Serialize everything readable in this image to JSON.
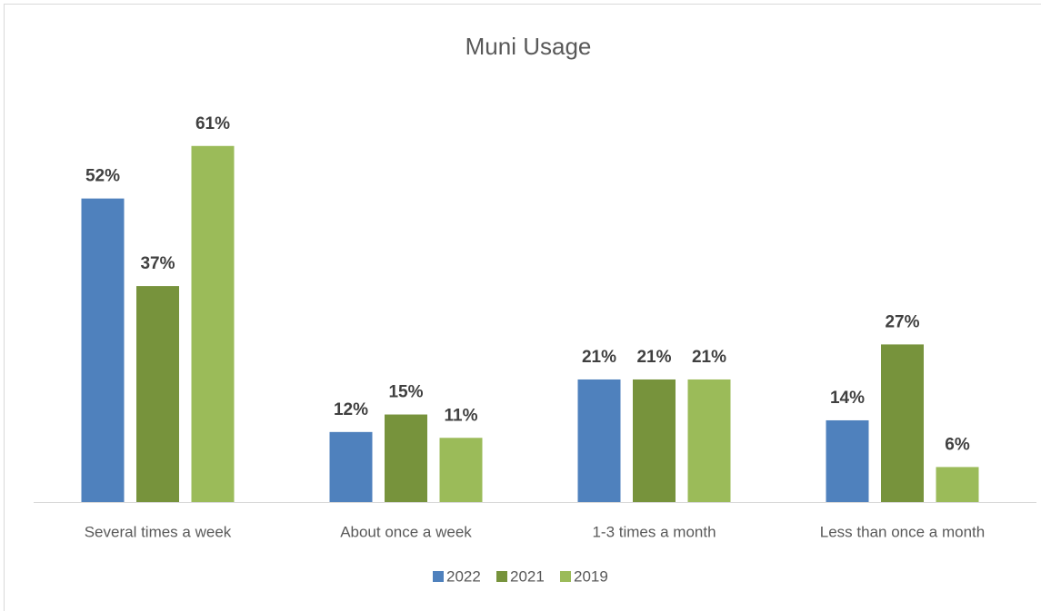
{
  "chart_data": {
    "type": "bar",
    "title": "Muni Usage",
    "categories": [
      "Several times a week",
      "About once a week",
      "1-3 times a month",
      "Less than once a month"
    ],
    "series": [
      {
        "name": "2022",
        "color": "#4f81bd",
        "values": [
          52,
          12,
          21,
          14
        ],
        "value_labels": [
          "52%",
          "12%",
          "21%",
          "14%"
        ]
      },
      {
        "name": "2021",
        "color": "#77933c",
        "values": [
          37,
          15,
          21,
          27
        ],
        "value_labels": [
          "37%",
          "15%",
          "21%",
          "27%"
        ]
      },
      {
        "name": "2019",
        "color": "#9bbb59",
        "values": [
          61,
          11,
          21,
          6
        ],
        "value_labels": [
          "61%",
          "11%",
          "21%",
          "6%"
        ]
      }
    ],
    "legend": "bottom"
  }
}
